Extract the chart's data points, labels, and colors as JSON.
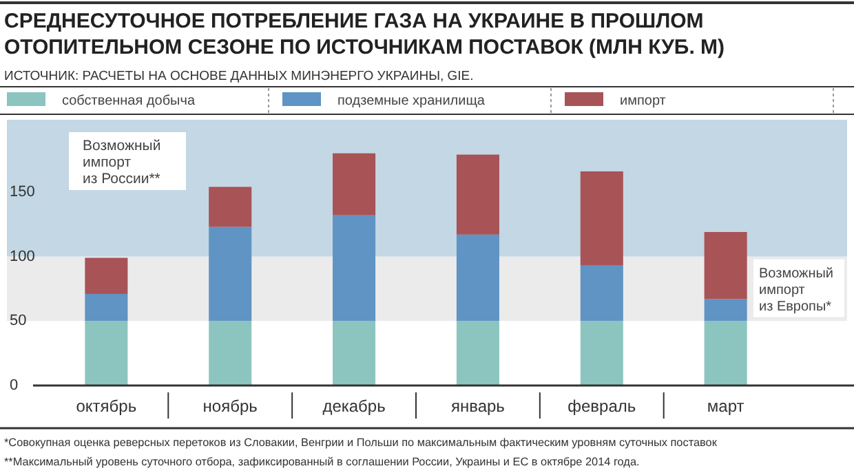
{
  "chart_data": {
    "type": "bar",
    "stacked": true,
    "title": "СРЕДНЕСУТОЧНОЕ ПОТРЕБЛЕНИЕ ГАЗА НА УКРАИНЕ В ПРОШЛОМ ОТОПИТЕЛЬНОМ СЕЗОНЕ ПО ИСТОЧНИКАМ ПОСТАВОК (МЛН КУБ. М)",
    "subtitle": "ИСТОЧНИК: РАСЧЕТЫ НА ОСНОВЕ ДАННЫХ МИНЭНЕРГО УКРАИНЫ, GIE.",
    "categories": [
      "октябрь",
      "ноябрь",
      "декабрь",
      "январь",
      "февраль",
      "март"
    ],
    "series": [
      {
        "name": "собственная добыча",
        "color": "#8cc5c0",
        "values": [
          50,
          50,
          50,
          50,
          50,
          50
        ]
      },
      {
        "name": "подземные хранилища",
        "color": "#5f94c4",
        "values": [
          21,
          73,
          82,
          67,
          43,
          17
        ]
      },
      {
        "name": "импорт",
        "color": "#a85356",
        "values": [
          28,
          31,
          48,
          62,
          73,
          52
        ]
      }
    ],
    "ylim": [
      0,
      206
    ],
    "yticks": [
      0,
      50,
      100,
      150
    ],
    "grid": false,
    "legend": "top",
    "bands": [
      {
        "axis": "y",
        "from": 50,
        "to": 100,
        "label": "Возможный импорт из Европы*",
        "color": "#ebebeb"
      },
      {
        "axis": "y",
        "from": 100,
        "to": 206,
        "label": "Возможный импорт из России**",
        "color": "#c3d7e4"
      }
    ],
    "annotations": [
      "*Совокупная оценка реверсных перетоков из Словакии, Венгрии и Польши по максимальным фактическим уровням суточных поставок",
      "**Максимальный уровень суточного отбора, зафиксированный в соглашении России, Украины и ЕС в октябре 2014 года."
    ]
  }
}
